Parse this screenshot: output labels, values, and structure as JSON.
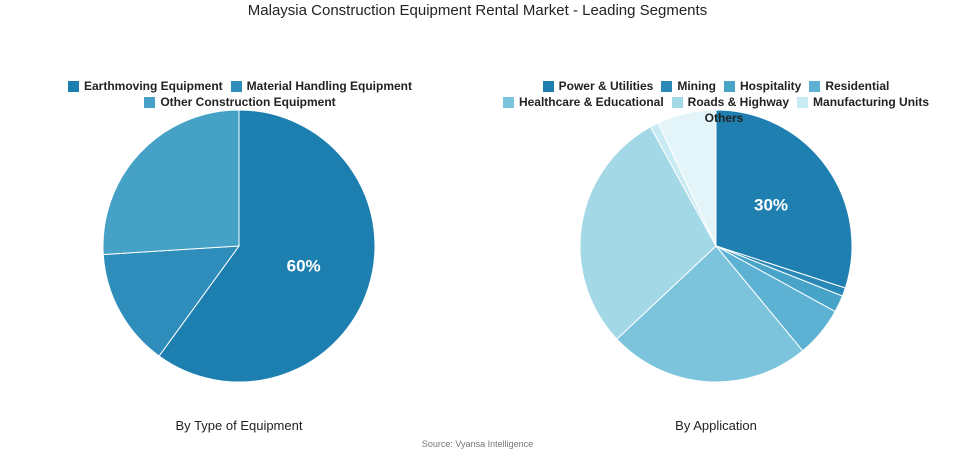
{
  "title": "Malaysia Construction Equipment Rental Market - Leading Segments",
  "source": "Source: Vyansa Intelligence",
  "chart_data": [
    {
      "type": "pie",
      "title": "By Type of Equipment",
      "categories": [
        "Earthmoving Equipment",
        "Material Handling Equipment",
        "Other Construction Equipment"
      ],
      "values": [
        60,
        14,
        26
      ],
      "value_labels": [
        "60%",
        null,
        null
      ],
      "colors": [
        "#1d7fb0",
        "#2e8dba",
        "#46a1c7"
      ]
    },
    {
      "type": "pie",
      "title": "By Application",
      "categories": [
        "Power & Utilities",
        "Mining",
        "Hospitality",
        "Residential",
        "Healthcare & Educational",
        "Roads & Highway",
        "Manufacturing Units",
        "Others"
      ],
      "values": [
        30,
        1,
        2,
        6,
        24,
        29,
        1,
        7
      ],
      "value_labels": [
        "30%",
        null,
        null,
        null,
        null,
        null,
        null,
        null
      ],
      "colors": [
        "#1f7fb0",
        "#2a89b7",
        "#47a4c8",
        "#5db2d3",
        "#7cc4dc",
        "#a3d8e6",
        "#c8eaf2",
        "#e3f5f9"
      ]
    }
  ]
}
